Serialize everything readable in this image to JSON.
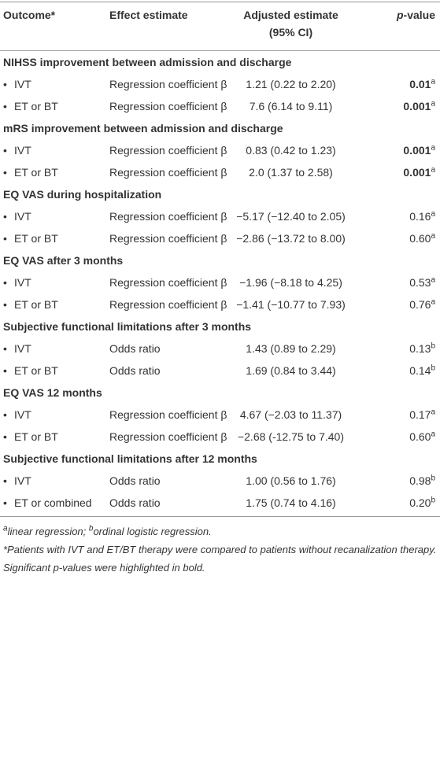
{
  "table": {
    "header": [
      {
        "text": "Outcome*"
      },
      {
        "text": "Effect estimate"
      },
      {
        "text": "Adjusted estimate (95% CI)"
      },
      {
        "italic": "p",
        "text": "-value"
      }
    ],
    "sections": [
      {
        "title": "NIHSS improvement between admission and discharge",
        "rows": [
          {
            "outcome": "IVT",
            "effect": "Regression coefficient β",
            "estimate": "1.21 (0.22 to 2.20)",
            "p": "0.01",
            "sup": "a",
            "bold": true
          },
          {
            "outcome": "ET or BT",
            "effect": "Regression coefficient β",
            "estimate": "7.6 (6.14 to 9.11)",
            "p": "0.001",
            "sup": "a",
            "bold": true
          }
        ]
      },
      {
        "title": "mRS improvement between admission and discharge",
        "rows": [
          {
            "outcome": "IVT",
            "effect": "Regression coefficient β",
            "estimate": "0.83 (0.42 to 1.23)",
            "p": "0.001",
            "sup": "a",
            "bold": true
          },
          {
            "outcome": "ET or BT",
            "effect": "Regression coefficient β",
            "estimate": "2.0 (1.37 to 2.58)",
            "p": "0.001",
            "sup": "a",
            "bold": true
          }
        ]
      },
      {
        "title": "EQ VAS during hospitalization",
        "rows": [
          {
            "outcome": "IVT",
            "effect": "Regression coefficient β",
            "estimate": "−5.17 (−12.40 to 2.05)",
            "p": "0.16",
            "sup": "a",
            "bold": false
          },
          {
            "outcome": "ET or BT",
            "effect": "Regression coefficient β",
            "estimate": "−2.86 (−13.72 to 8.00)",
            "p": "0.60",
            "sup": "a",
            "bold": false
          }
        ]
      },
      {
        "title": "EQ VAS after 3 months",
        "rows": [
          {
            "outcome": "IVT",
            "effect": "Regression coefficient β",
            "estimate": "−1.96 (−8.18 to 4.25)",
            "p": "0.53",
            "sup": "a",
            "bold": false
          },
          {
            "outcome": "ET or BT",
            "effect": "Regression coefficient β",
            "estimate": "−1.41 (−10.77 to 7.93)",
            "p": "0.76",
            "sup": "a",
            "bold": false
          }
        ]
      },
      {
        "title": "Subjective functional limitations after 3 months",
        "rows": [
          {
            "outcome": "IVT",
            "effect": "Odds ratio",
            "estimate": "1.43 (0.89 to 2.29)",
            "p": "0.13",
            "sup": "b",
            "bold": false
          },
          {
            "outcome": "ET or BT",
            "effect": "Odds ratio",
            "estimate": "1.69 (0.84 to 3.44)",
            "p": "0.14",
            "sup": "b",
            "bold": false
          }
        ]
      },
      {
        "title": "EQ VAS 12 months",
        "rows": [
          {
            "outcome": "IVT",
            "effect": "Regression coefficient β",
            "estimate": "4.67 (−2.03 to 11.37)",
            "p": "0.17",
            "sup": "a",
            "bold": false
          },
          {
            "outcome": "ET or BT",
            "effect": "Regression coefficient β",
            "estimate": "−2.68 (-12.75 to 7.40)",
            "p": "0.60",
            "sup": "a",
            "bold": false
          }
        ]
      },
      {
        "title": "Subjective functional limitations after 12 months",
        "rows": [
          {
            "outcome": "IVT",
            "effect": "Odds ratio",
            "estimate": "1.00 (0.56 to 1.76)",
            "p": "0.98",
            "sup": "b",
            "bold": false
          },
          {
            "outcome": "ET or combined",
            "effect": "Odds ratio",
            "estimate": "1.75 (0.74 to 4.16)",
            "p": "0.20",
            "sup": "b",
            "bold": false
          }
        ]
      }
    ]
  },
  "footnotes": [
    [
      {
        "sup": "a",
        "text": "linear regression; "
      },
      {
        "sup": "b",
        "text": "ordinal logistic regression."
      }
    ],
    [
      {
        "text": "*Patients with IVT and ET/BT therapy were compared to patients without recanalization therapy."
      }
    ],
    [
      {
        "text": "Significant p-values were highlighted in bold."
      }
    ]
  ]
}
